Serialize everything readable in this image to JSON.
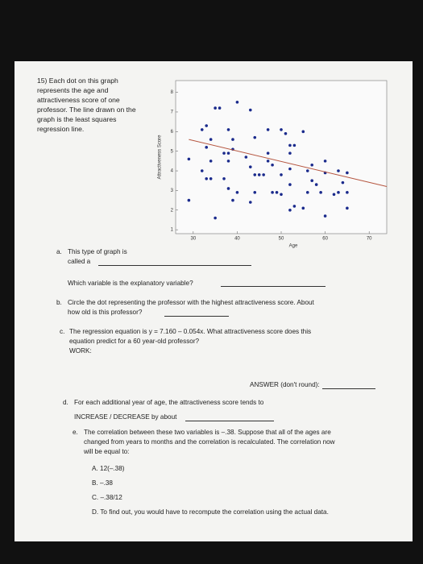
{
  "question": "15) Each dot on this graph represents the age and attractiveness score of one professor. The line drawn on the graph is the least squares regression line.",
  "chart_data": {
    "type": "scatter",
    "xlabel": "Age",
    "ylabel": "Attractiveness Score",
    "color": "#1a2a8c",
    "xlim": [
      26,
      74
    ],
    "ylim": [
      0.8,
      8.6
    ],
    "xticks": [
      30,
      40,
      50,
      60,
      70
    ],
    "yticks": [
      1,
      2,
      3,
      4,
      5,
      6,
      7,
      8
    ],
    "x": [
      35,
      36,
      43,
      40,
      33,
      38,
      32,
      39,
      34,
      44,
      47,
      51,
      55,
      50,
      53,
      47,
      52,
      52,
      37,
      38,
      39,
      33,
      29,
      34,
      32,
      33,
      34,
      37,
      38,
      42,
      43,
      47,
      48,
      45,
      46,
      44,
      50,
      52,
      52,
      57,
      60,
      60,
      63,
      65,
      56,
      57,
      58,
      48,
      49,
      50,
      56,
      59,
      62,
      63,
      64,
      44,
      40,
      38,
      43,
      39,
      35,
      29,
      52,
      55,
      53,
      60,
      65,
      65
    ],
    "y": [
      7.2,
      7.2,
      7.1,
      7.5,
      6.3,
      6.1,
      6.1,
      5.6,
      5.6,
      5.7,
      6.1,
      5.9,
      6.0,
      6.1,
      5.3,
      4.9,
      5.3,
      4.9,
      4.9,
      4.9,
      5.1,
      5.2,
      4.6,
      4.5,
      4.0,
      3.6,
      3.6,
      3.6,
      4.5,
      4.7,
      4.2,
      4.5,
      4.3,
      3.8,
      3.8,
      3.8,
      3.8,
      4.1,
      3.3,
      4.3,
      4.5,
      3.9,
      4.0,
      3.9,
      4.0,
      3.5,
      3.3,
      2.9,
      2.9,
      2.8,
      2.9,
      2.9,
      2.8,
      2.9,
      3.4,
      2.9,
      2.9,
      3.1,
      2.4,
      2.5,
      1.6,
      2.5,
      2.0,
      2.1,
      2.2,
      1.7,
      2.1,
      2.9
    ],
    "fit_line": {
      "x": [
        29,
        74
      ],
      "y": [
        5.6,
        3.2
      ],
      "color": "#b5553f"
    }
  },
  "parts": [
    {
      "letter": "a.",
      "lines": [
        "This type of graph is",
        "called a"
      ]
    },
    {
      "lines": [
        "Which variable is the explanatory variable?"
      ]
    },
    {
      "letter": "b.",
      "lines": [
        "Circle the dot representing the professor with the highest attractiveness score. About",
        "how old is this professor?"
      ]
    },
    {
      "letter": "c.",
      "lines": [
        "The regression equation is y = 7.160 – 0.054x. What attractiveness score does this",
        "equation predict for a 60 year-old professor?",
        "WORK:"
      ]
    },
    {
      "lines": [
        "ANSWER (don't round):"
      ]
    },
    {
      "letter": "d.",
      "lines": [
        "For each additional year of age, the attractiveness score tends to",
        "INCREASE / DECREASE by about"
      ]
    },
    {
      "letter": "e.",
      "lines": [
        "The correlation between these two variables is –.38. Suppose that all of the ages are",
        "changed from years to months and the correlation is recalculated. The correlation now",
        "will be equal to:"
      ]
    }
  ],
  "options": [
    "A. 12(–.38)",
    "B. –.38",
    "C. –.38/12",
    "D. To find out, you would have to recompute the correlation using the actual data."
  ]
}
